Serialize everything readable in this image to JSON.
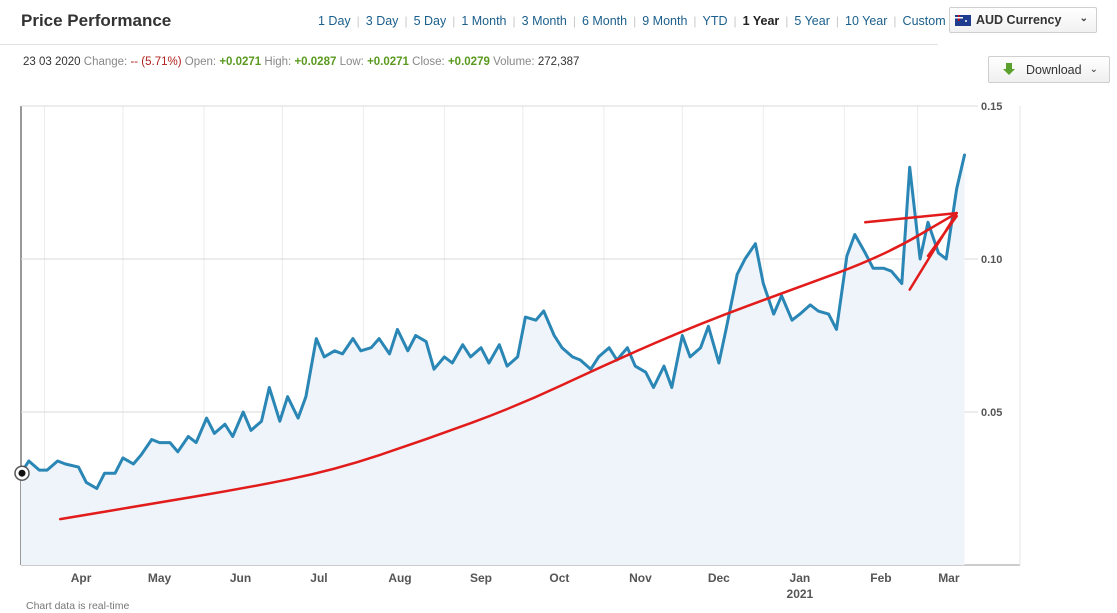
{
  "header": {
    "title": "Price Performance"
  },
  "ranges": [
    "1 Day",
    "3 Day",
    "5 Day",
    "1 Month",
    "3 Month",
    "6 Month",
    "9 Month",
    "YTD",
    "1 Year",
    "5 Year",
    "10 Year",
    "Custom"
  ],
  "active_range": "1 Year",
  "currency": {
    "label": "AUD Currency",
    "flag_icon": "australia-flag-icon"
  },
  "stats": {
    "date": "23 03 2020",
    "change_label": "Change:",
    "change_value": "-- (5.71%)",
    "open_label": "Open:",
    "open_value": "+0.0271",
    "high_label": "High:",
    "high_value": "+0.0287",
    "low_label": "Low:",
    "low_value": "+0.0271",
    "close_label": "Close:",
    "close_value": "+0.0279",
    "volume_label": "Volume:",
    "volume_value": "272,387"
  },
  "download": {
    "label": "Download",
    "icon": "download-icon"
  },
  "footnote": "Chart data is real-time",
  "colors": {
    "line": "#2a86b5",
    "area": "#eef4fa",
    "annotation": "#e21b1b",
    "grid": "#d8d8d8"
  },
  "chart_data": {
    "type": "line",
    "ylim": [
      0,
      0.15
    ],
    "yticks": [
      0.05,
      0.1,
      0.15
    ],
    "ytick_labels": [
      "0.05",
      "0.10",
      "0.15"
    ],
    "xtick_labels": [
      "Apr",
      "May",
      "Jun",
      "Jul",
      "Aug",
      "Sep",
      "Oct",
      "Nov",
      "Dec",
      "Jan",
      "Feb",
      "Mar"
    ],
    "year_label": "2021",
    "grid": "horizontal",
    "series": [
      {
        "x": [
          "2020-03-23",
          "2020-03-26",
          "2020-03-30",
          "2020-04-02",
          "2020-04-06",
          "2020-04-09",
          "2020-04-14",
          "2020-04-17",
          "2020-04-21",
          "2020-04-24",
          "2020-04-28",
          "2020-05-01",
          "2020-05-05",
          "2020-05-08",
          "2020-05-12",
          "2020-05-15",
          "2020-05-19",
          "2020-05-22",
          "2020-05-26",
          "2020-05-29",
          "2020-06-02",
          "2020-06-05",
          "2020-06-09",
          "2020-06-12",
          "2020-06-16",
          "2020-06-19",
          "2020-06-23",
          "2020-06-26",
          "2020-06-30",
          "2020-07-03",
          "2020-07-07",
          "2020-07-10",
          "2020-07-14",
          "2020-07-17",
          "2020-07-21",
          "2020-07-24",
          "2020-07-28",
          "2020-07-31",
          "2020-08-04",
          "2020-08-07",
          "2020-08-11",
          "2020-08-14",
          "2020-08-18",
          "2020-08-21",
          "2020-08-25",
          "2020-08-28",
          "2020-09-01",
          "2020-09-04",
          "2020-09-08",
          "2020-09-11",
          "2020-09-15",
          "2020-09-18",
          "2020-09-22",
          "2020-09-25",
          "2020-09-29",
          "2020-10-02",
          "2020-10-06",
          "2020-10-09",
          "2020-10-13",
          "2020-10-16",
          "2020-10-20",
          "2020-10-23",
          "2020-10-27",
          "2020-10-30",
          "2020-11-03",
          "2020-11-06",
          "2020-11-10",
          "2020-11-13",
          "2020-11-17",
          "2020-11-20",
          "2020-11-24",
          "2020-11-27",
          "2020-12-01",
          "2020-12-04",
          "2020-12-08",
          "2020-12-11",
          "2020-12-15",
          "2020-12-18",
          "2020-12-22",
          "2020-12-25",
          "2020-12-29",
          "2021-01-01",
          "2021-01-05",
          "2021-01-08",
          "2021-01-12",
          "2021-01-15",
          "2021-01-19",
          "2021-01-22",
          "2021-01-26",
          "2021-01-29",
          "2021-02-02",
          "2021-02-05",
          "2021-02-09",
          "2021-02-12",
          "2021-02-16",
          "2021-02-19",
          "2021-02-23",
          "2021-02-26",
          "2021-03-02",
          "2021-03-05",
          "2021-03-09",
          "2021-03-12",
          "2021-03-16",
          "2021-03-19"
        ],
        "y": [
          0.03,
          0.034,
          0.031,
          0.031,
          0.034,
          0.033,
          0.032,
          0.027,
          0.025,
          0.03,
          0.03,
          0.035,
          0.033,
          0.036,
          0.041,
          0.04,
          0.04,
          0.037,
          0.042,
          0.04,
          0.048,
          0.043,
          0.046,
          0.042,
          0.05,
          0.044,
          0.047,
          0.058,
          0.047,
          0.055,
          0.048,
          0.055,
          0.074,
          0.068,
          0.07,
          0.069,
          0.074,
          0.07,
          0.071,
          0.074,
          0.069,
          0.077,
          0.07,
          0.075,
          0.073,
          0.064,
          0.068,
          0.066,
          0.072,
          0.068,
          0.071,
          0.066,
          0.072,
          0.065,
          0.068,
          0.081,
          0.08,
          0.083,
          0.075,
          0.071,
          0.068,
          0.067,
          0.064,
          0.068,
          0.071,
          0.067,
          0.071,
          0.065,
          0.063,
          0.058,
          0.065,
          0.058,
          0.075,
          0.068,
          0.071,
          0.078,
          0.066,
          0.078,
          0.095,
          0.1,
          0.105,
          0.092,
          0.082,
          0.088,
          0.08,
          0.082,
          0.085,
          0.083,
          0.082,
          0.077,
          0.101,
          0.108,
          0.102,
          0.097,
          0.097,
          0.096,
          0.092,
          0.13,
          0.1,
          0.112,
          0.102,
          0.1,
          0.123,
          0.134
        ]
      }
    ],
    "annotations": [
      {
        "type": "trend-curve",
        "x": [
          "2020-04-07",
          "2020-05-12",
          "2020-06-16",
          "2020-07-21",
          "2020-08-25",
          "2020-09-29",
          "2020-11-03",
          "2020-12-08",
          "2021-01-12",
          "2021-02-16",
          "2021-03-16"
        ],
        "y": [
          0.015,
          0.02,
          0.025,
          0.031,
          0.041,
          0.052,
          0.066,
          0.079,
          0.09,
          0.101,
          0.115
        ]
      },
      {
        "type": "drawn-line",
        "x": [
          "2021-02-09",
          "2021-03-16"
        ],
        "y": [
          0.112,
          0.115
        ]
      },
      {
        "type": "drawn-line",
        "x": [
          "2021-02-26",
          "2021-03-16"
        ],
        "y": [
          0.09,
          0.115
        ]
      },
      {
        "type": "drawn-line",
        "x": [
          "2021-03-05",
          "2021-03-16"
        ],
        "y": [
          0.101,
          0.114
        ]
      }
    ]
  }
}
